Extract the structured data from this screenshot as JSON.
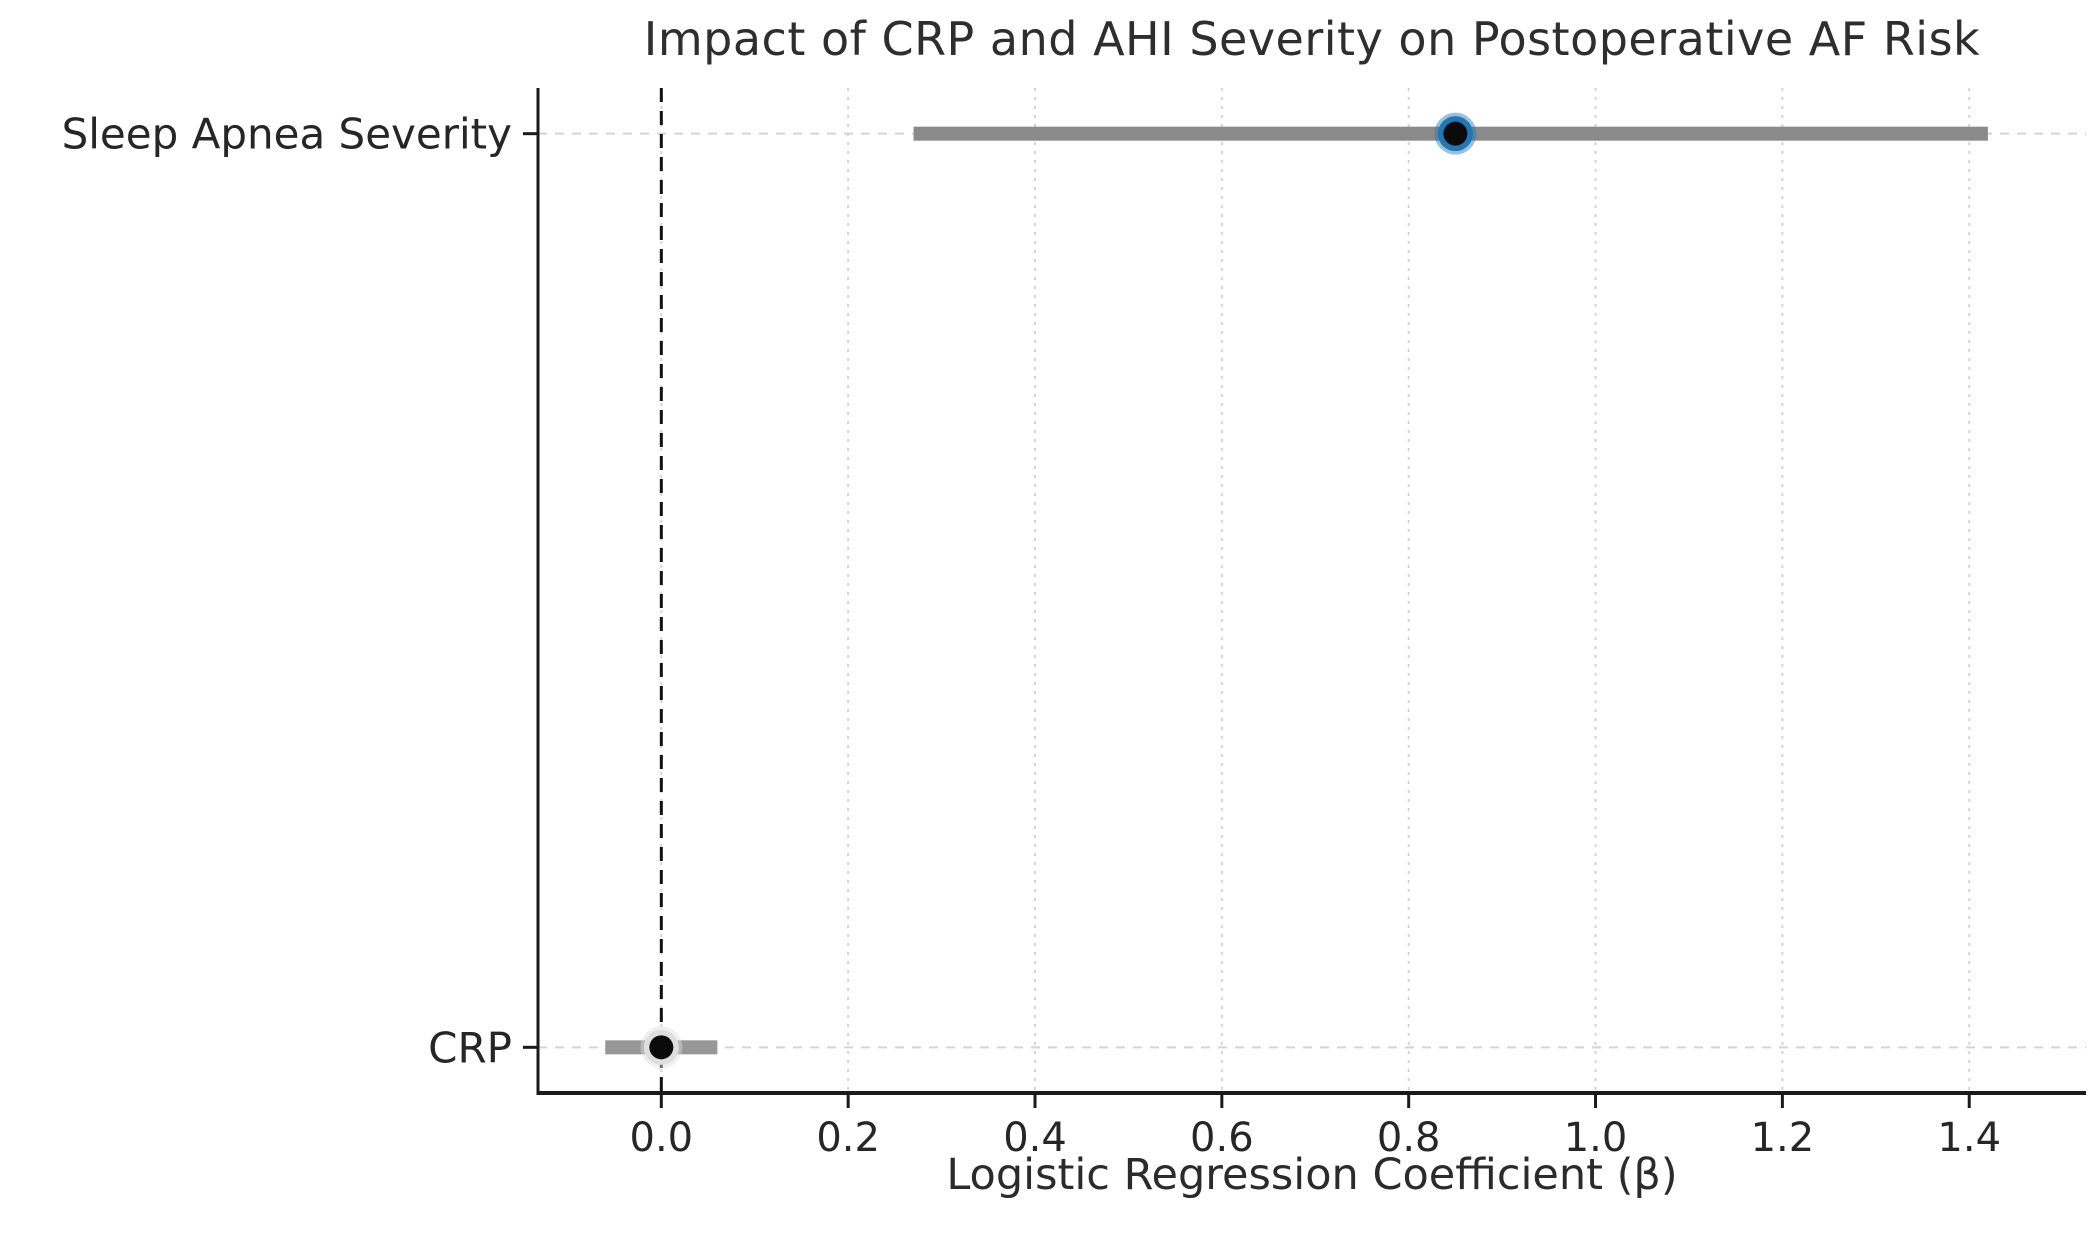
{
  "chart_data": {
    "type": "scatter",
    "subtype": "coefficient-forest-plot",
    "title": "Impact of CRP and AHI Severity on Postoperative AF Risk",
    "xlabel": "Logistic Regression Coefficient (β)",
    "ylabel": "",
    "categories": [
      "Sleep Apnea Severity",
      "CRP"
    ],
    "points": [
      {
        "label": "Sleep Apnea Severity",
        "coefficient": 0.85,
        "ci_low": 0.27,
        "ci_high": 1.42,
        "y": 1,
        "marker_fill": "#0b0b0b",
        "marker_edge": "#1f77b4",
        "bar_color": "#8a8a8a"
      },
      {
        "label": "CRP",
        "coefficient": 0.0,
        "ci_low": -0.06,
        "ci_high": 0.06,
        "y": 0,
        "marker_fill": "#0b0b0b",
        "marker_edge": "#dedede",
        "bar_color": "#979797"
      }
    ],
    "xticks": [
      0.0,
      0.2,
      0.4,
      0.6,
      0.8,
      1.0,
      1.2,
      1.4
    ],
    "xtick_labels": [
      "0.0",
      "0.2",
      "0.4",
      "0.6",
      "0.8",
      "1.0",
      "1.2",
      "1.4"
    ],
    "xlim": [
      -0.132,
      1.525
    ],
    "ylim": [
      -0.05,
      1.05
    ],
    "reference_line_x": 0.0,
    "grid": true,
    "legend_position": "none",
    "colors": {
      "grid": "#d4d4d4",
      "spine": "#1a1a1a",
      "reference_line": "#111111",
      "title_text": "#2e2e2e",
      "tick_text": "#262626"
    }
  }
}
